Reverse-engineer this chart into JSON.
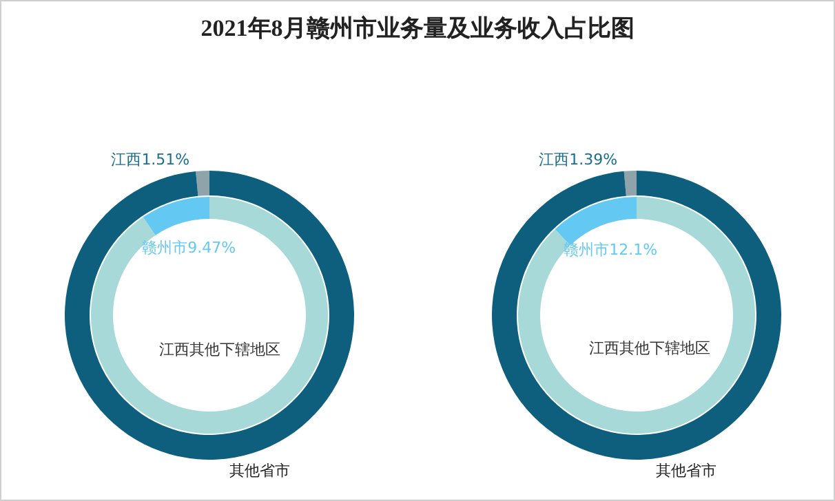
{
  "chart_data": [
    {
      "type": "donut",
      "title": "2021年8月赣州市业务量及业务收入占比图",
      "categories": [
        "江西",
        "其他省市"
      ],
      "values": [
        1.51,
        98.49
      ],
      "colors": [
        "#8fa3ab",
        "#0e5f7e"
      ],
      "value_labels": [
        "1.51%",
        null
      ]
    },
    {
      "type": "donut",
      "categories": [
        "赣州市",
        "江西其他下辖地区"
      ],
      "values": [
        9.47,
        90.53
      ],
      "colors": [
        "#63c9f2",
        "#a6d9d7"
      ],
      "value_labels": [
        "9.47%",
        null
      ]
    },
    {
      "type": "donut",
      "categories": [
        "江西",
        "其他省市"
      ],
      "values": [
        1.39,
        98.61
      ],
      "colors": [
        "#8fa3ab",
        "#0e5f7e"
      ],
      "value_labels": [
        "1.39%",
        null
      ]
    },
    {
      "type": "donut",
      "categories": [
        "赣州市",
        "江西其他下辖地区"
      ],
      "values": [
        12.1,
        87.9
      ],
      "colors": [
        "#63c9f2",
        "#a6d9d7"
      ],
      "value_labels": [
        "12.1%",
        null
      ]
    }
  ]
}
